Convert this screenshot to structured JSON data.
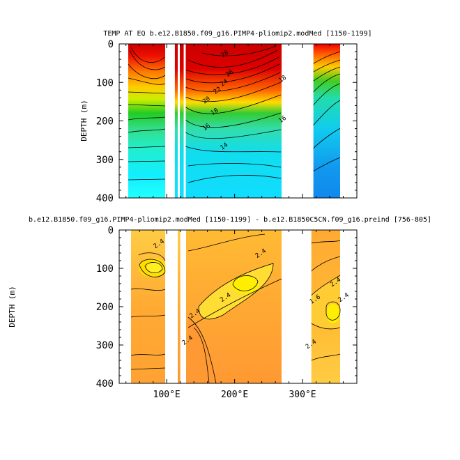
{
  "chart_data": [
    {
      "type": "heatmap",
      "title": "TEMP AT EQ b.e12.B1850.f09_g16.PIMP4-pliomip2.modMed [1150-1199]",
      "ylabel": "DEPTH (m)",
      "xlabel": "",
      "xlim": [
        30,
        380
      ],
      "ylim": [
        400,
        0
      ],
      "yticks": [
        0,
        100,
        200,
        300,
        400
      ],
      "xticks": [
        100,
        200,
        300
      ],
      "xtick_labels": [
        "100°E",
        "200°E",
        "300°E"
      ],
      "ytick_labels": [
        "0",
        "100",
        "200",
        "300",
        "400"
      ],
      "contour_labels": [
        {
          "text": "28",
          "lon": 187,
          "depth": 30
        },
        {
          "text": "26",
          "lon": 194,
          "depth": 80
        },
        {
          "text": "24",
          "lon": 186,
          "depth": 105
        },
        {
          "text": "22",
          "lon": 176,
          "depth": 125
        },
        {
          "text": "20",
          "lon": 160,
          "depth": 150
        },
        {
          "text": "18",
          "lon": 172,
          "depth": 180
        },
        {
          "text": "16",
          "lon": 160,
          "depth": 220
        },
        {
          "text": "14",
          "lon": 186,
          "depth": 270
        },
        {
          "text": "18",
          "lon": 272,
          "depth": 95
        },
        {
          "text": "16",
          "lon": 272,
          "depth": 200
        }
      ],
      "land_gaps": [
        [
          98,
          112
        ],
        [
          125,
          128
        ],
        [
          278,
          316
        ],
        [
          372,
          380
        ]
      ]
    },
    {
      "type": "heatmap",
      "title": "b.e12.B1850.f09_g16.PIMP4-pliomip2.modMed [1150-1199] - b.e12.B1850C5CN.f09_g16.preind [756-805]",
      "ylabel": "DEPTH (m)",
      "xlabel": "",
      "xlim": [
        30,
        380
      ],
      "ylim": [
        400,
        0
      ],
      "yticks": [
        0,
        100,
        200,
        300,
        400
      ],
      "xticks": [
        100,
        200,
        300
      ],
      "xtick_labels": [
        "100°E",
        "200°E",
        "300°E"
      ],
      "ytick_labels": [
        "0",
        "100",
        "200",
        "300",
        "400"
      ],
      "contour_labels": [
        {
          "text": "2.4",
          "lon": 90,
          "depth": 40
        },
        {
          "text": "2.4",
          "lon": 240,
          "depth": 65
        },
        {
          "text": "2.4",
          "lon": 188,
          "depth": 180
        },
        {
          "text": "2.4",
          "lon": 143,
          "depth": 222
        },
        {
          "text": "2.4",
          "lon": 132,
          "depth": 292
        },
        {
          "text": "2.4",
          "lon": 350,
          "depth": 140
        },
        {
          "text": "2.4",
          "lon": 362,
          "depth": 180
        },
        {
          "text": "1.6",
          "lon": 320,
          "depth": 185
        },
        {
          "text": "2.4",
          "lon": 314,
          "depth": 302
        }
      ],
      "land_gaps": [
        [
          98,
          113
        ],
        [
          120,
          123
        ],
        [
          278,
          313
        ],
        [
          372,
          380
        ]
      ]
    }
  ]
}
